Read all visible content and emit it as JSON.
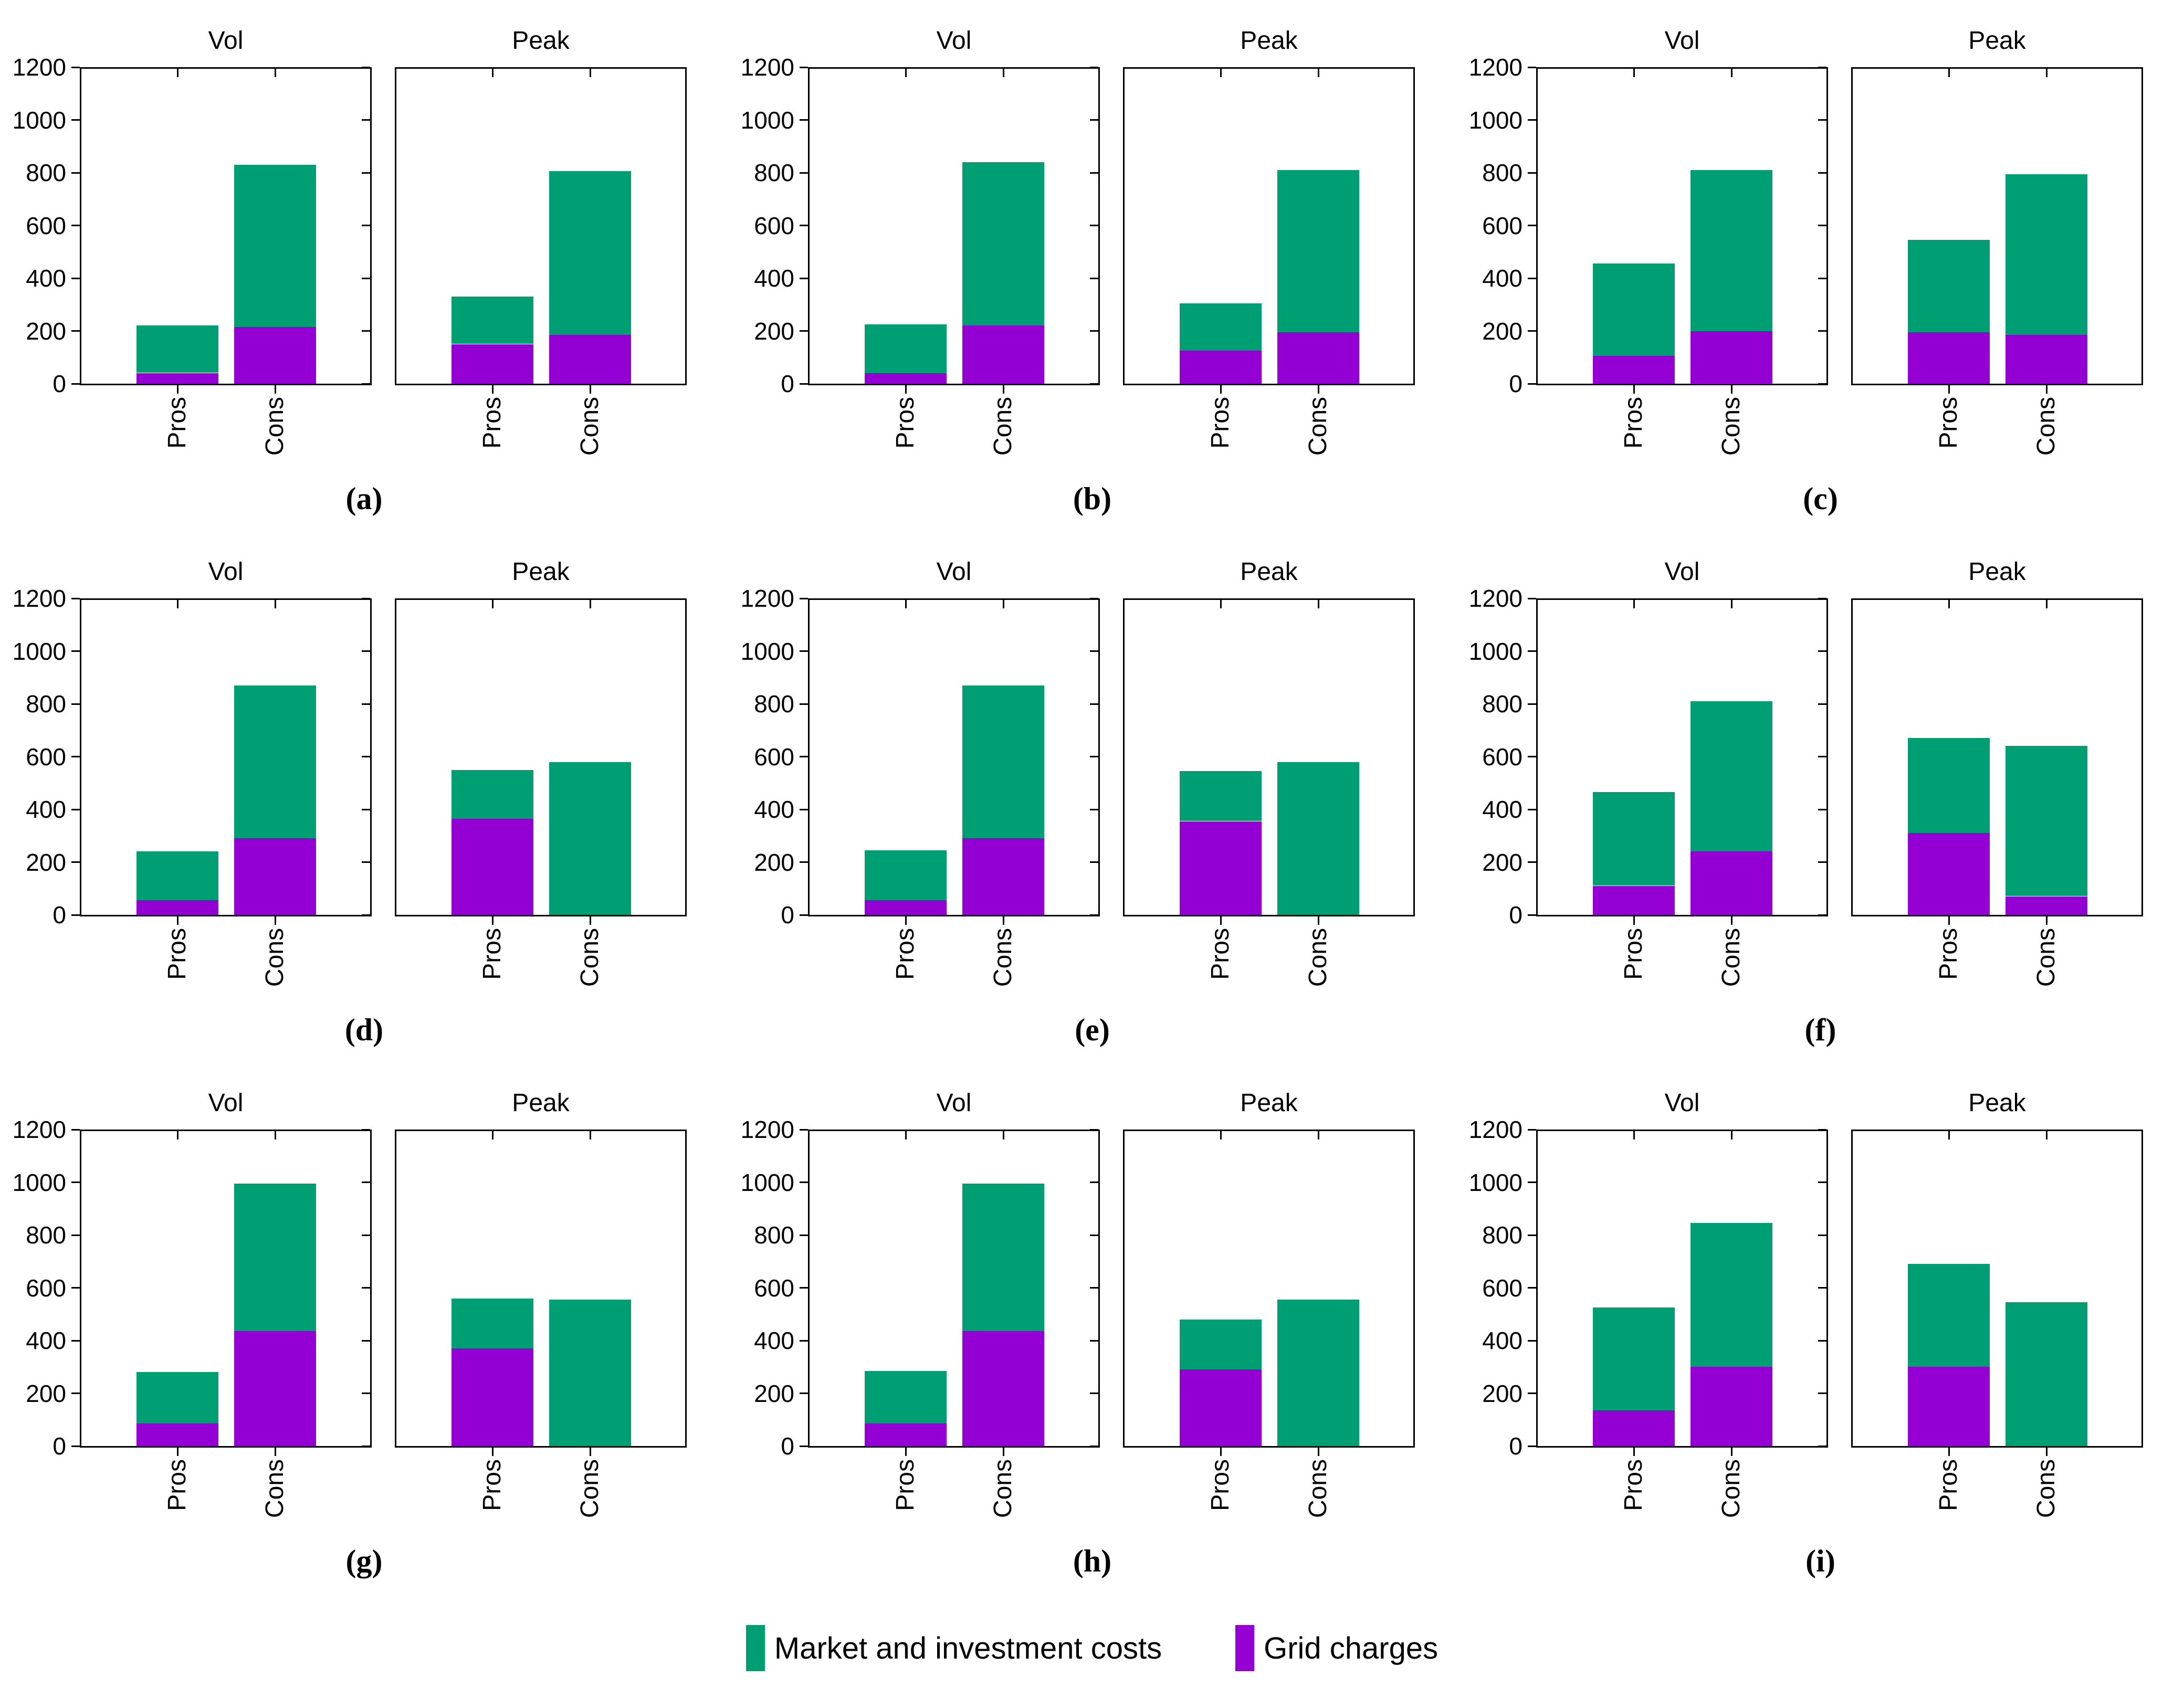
{
  "figure": {
    "background": "#ffffff",
    "panel_titles": [
      "Vol",
      "Peak"
    ],
    "x_categories": [
      "Pros",
      "Cons"
    ]
  },
  "legend": {
    "items": [
      {
        "key": "market",
        "label": "Market and investment costs",
        "color": "#009E73"
      },
      {
        "key": "grid",
        "label": "Grid charges",
        "color": "#9400D3"
      }
    ]
  },
  "chart_data": {
    "type": "bar",
    "stacked": true,
    "categories": [
      "Pros",
      "Cons"
    ],
    "series_names": [
      "Grid charges",
      "Market and investment costs"
    ],
    "colors": {
      "grid": "#9400D3",
      "market": "#009E73"
    },
    "ylim": [
      0,
      1200
    ],
    "y_ticks": [
      0,
      200,
      400,
      600,
      800,
      1000,
      1200
    ],
    "grid_lines": false,
    "legend_position": "bottom-center",
    "note": "grid = bottom purple segment (Grid charges), market = top teal segment (Market and investment costs); values per category order [Pros, Cons]",
    "groups": [
      {
        "label": "(a)",
        "panels": [
          {
            "title": "Vol",
            "series": {
              "grid": [
                40,
                215
              ],
              "market": [
                180,
                615
              ]
            }
          },
          {
            "title": "Peak",
            "series": {
              "grid": [
                150,
                185
              ],
              "market": [
                180,
                620
              ]
            }
          }
        ]
      },
      {
        "label": "(b)",
        "panels": [
          {
            "title": "Vol",
            "series": {
              "grid": [
                40,
                220
              ],
              "market": [
                185,
                620
              ]
            }
          },
          {
            "title": "Peak",
            "series": {
              "grid": [
                125,
                195
              ],
              "market": [
                180,
                615
              ]
            }
          }
        ]
      },
      {
        "label": "(c)",
        "panels": [
          {
            "title": "Vol",
            "series": {
              "grid": [
                105,
                200
              ],
              "market": [
                350,
                610
              ]
            }
          },
          {
            "title": "Peak",
            "series": {
              "grid": [
                195,
                185
              ],
              "market": [
                350,
                610
              ]
            }
          }
        ]
      },
      {
        "label": "(d)",
        "panels": [
          {
            "title": "Vol",
            "series": {
              "grid": [
                55,
                290
              ],
              "market": [
                185,
                580
              ]
            }
          },
          {
            "title": "Peak",
            "series": {
              "grid": [
                365,
                0
              ],
              "market": [
                185,
                580
              ]
            }
          }
        ]
      },
      {
        "label": "(e)",
        "panels": [
          {
            "title": "Vol",
            "series": {
              "grid": [
                55,
                290
              ],
              "market": [
                190,
                580
              ]
            }
          },
          {
            "title": "Peak",
            "series": {
              "grid": [
                355,
                0
              ],
              "market": [
                190,
                580
              ]
            }
          }
        ]
      },
      {
        "label": "(f)",
        "panels": [
          {
            "title": "Vol",
            "series": {
              "grid": [
                110,
                240
              ],
              "market": [
                355,
                570
              ]
            }
          },
          {
            "title": "Peak",
            "series": {
              "grid": [
                310,
                70
              ],
              "market": [
                360,
                570
              ]
            }
          }
        ]
      },
      {
        "label": "(g)",
        "panels": [
          {
            "title": "Vol",
            "series": {
              "grid": [
                85,
                435
              ],
              "market": [
                195,
                560
              ]
            }
          },
          {
            "title": "Peak",
            "series": {
              "grid": [
                370,
                0
              ],
              "market": [
                190,
                555
              ]
            }
          }
        ]
      },
      {
        "label": "(h)",
        "panels": [
          {
            "title": "Vol",
            "series": {
              "grid": [
                85,
                435
              ],
              "market": [
                200,
                560
              ]
            }
          },
          {
            "title": "Peak",
            "series": {
              "grid": [
                290,
                0
              ],
              "market": [
                190,
                555
              ]
            }
          }
        ]
      },
      {
        "label": "(i)",
        "panels": [
          {
            "title": "Vol",
            "series": {
              "grid": [
                135,
                300
              ],
              "market": [
                390,
                545
              ]
            }
          },
          {
            "title": "Peak",
            "series": {
              "grid": [
                300,
                0
              ],
              "market": [
                390,
                545
              ]
            }
          }
        ]
      }
    ]
  }
}
